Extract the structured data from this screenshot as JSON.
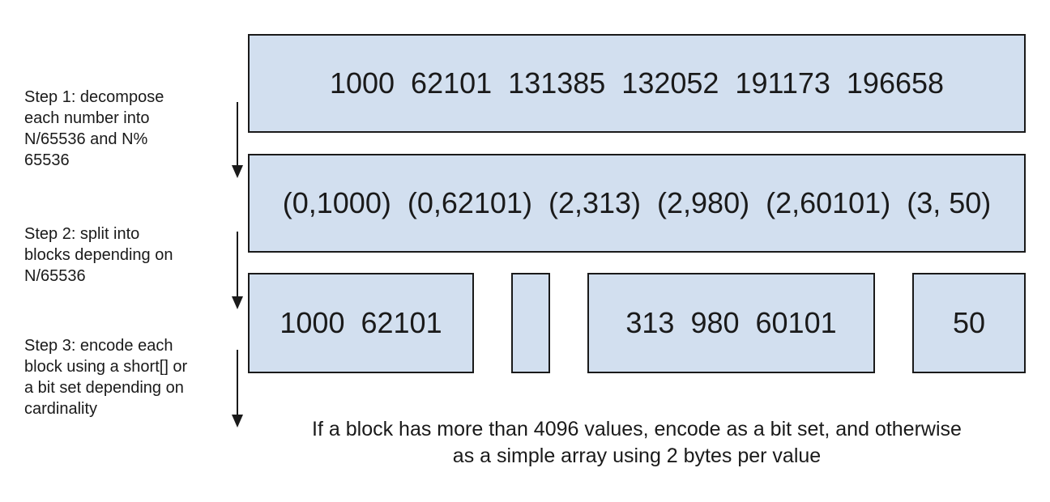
{
  "rows": {
    "numbers": "1000  62101  131385  132052  191173  196658",
    "pairs": "(0,1000)  (0,62101)  (2,313)  (2,980)  (2,60101)  (3, 50)"
  },
  "blocks": [
    {
      "label": "1000  62101"
    },
    {
      "label": ""
    },
    {
      "label": "313  980  60101"
    },
    {
      "label": "50"
    }
  ],
  "steps": [
    {
      "text": "Step 1: decompose\neach number into\nN/65536 and N%\n65536"
    },
    {
      "text": "Step 2: split into\nblocks depending on\nN/65536"
    },
    {
      "text": "Step 3: encode each\nblock using a short[] or\na bit set depending on\ncardinality"
    }
  ],
  "footnote": "If a block has more than 4096 values, encode as a bit set, and otherwise\nas a simple array using 2 bytes per value",
  "colors": {
    "box_fill": "#d2dfef",
    "stroke": "#1a1a1a"
  }
}
